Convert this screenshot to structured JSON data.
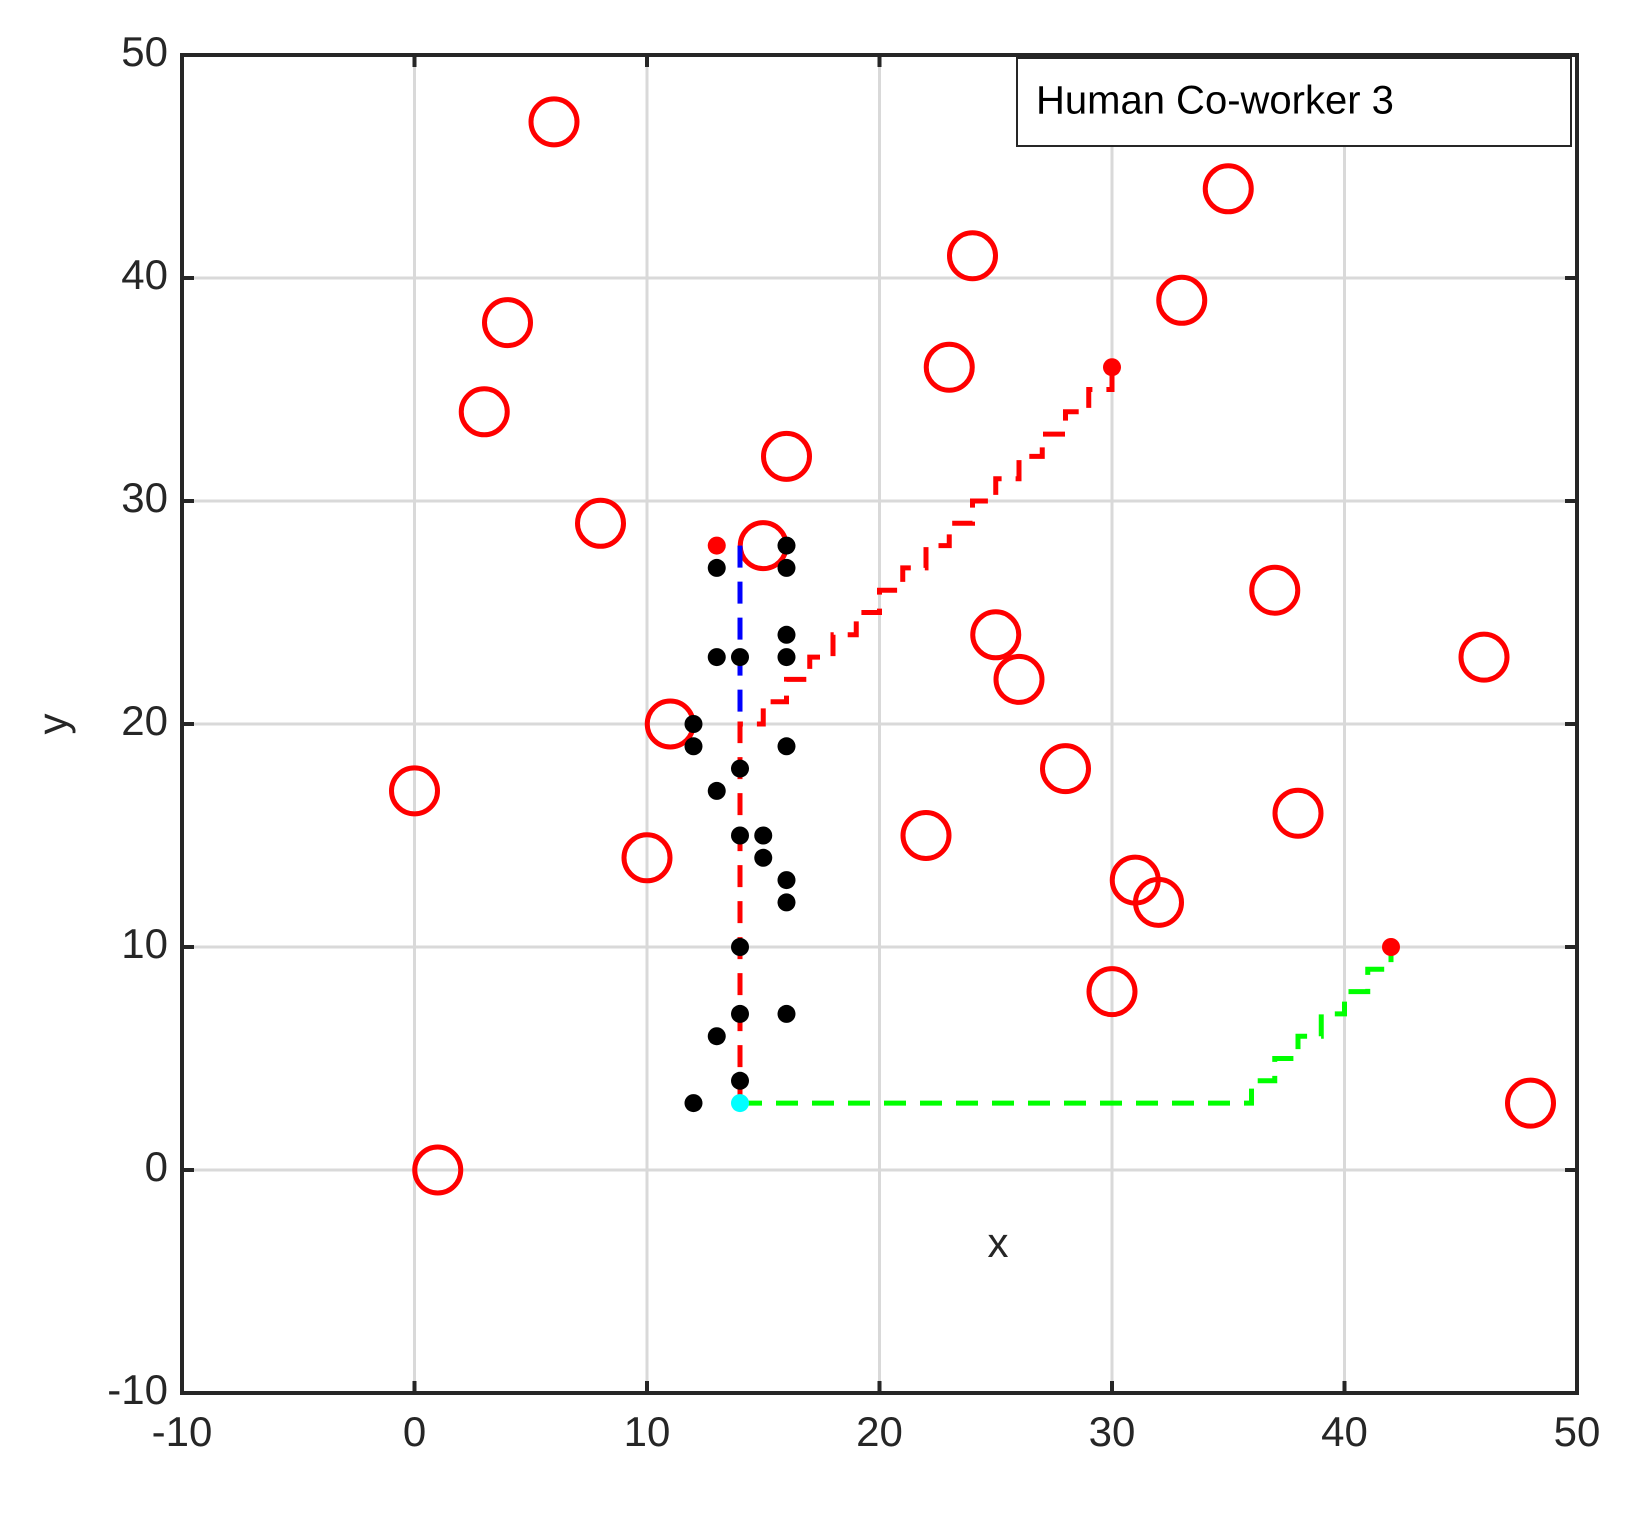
{
  "chart_data": {
    "type": "scatter",
    "annotation": "Human Co-worker 3",
    "xlabel": "x",
    "ylabel": "y",
    "xlim": [
      -10,
      50
    ],
    "ylim": [
      -10,
      50
    ],
    "xticks": [
      -10,
      0,
      10,
      20,
      30,
      40,
      50
    ],
    "yticks": [
      -10,
      0,
      10,
      20,
      30,
      40,
      50
    ],
    "grid": true,
    "series": [
      {
        "style": "circle",
        "color": "#ff0000",
        "x": [
          6,
          35,
          24,
          4,
          33,
          23,
          3,
          16,
          8,
          15,
          37,
          25,
          46,
          26,
          11,
          0,
          28,
          22,
          38,
          10,
          31,
          32,
          30,
          48,
          1
        ],
        "y": [
          47,
          44,
          41,
          38,
          39,
          36,
          34,
          32,
          29,
          28,
          26,
          24,
          23,
          22,
          20,
          17,
          18,
          15,
          16,
          14,
          13,
          12,
          8,
          3,
          0
        ]
      },
      {
        "style": "dashed-line",
        "color": "#0000ff",
        "x": [
          14,
          14
        ],
        "y": [
          28,
          20
        ]
      },
      {
        "style": "dashed-line",
        "color": "#ff0000",
        "x": [
          14,
          14,
          15,
          15,
          16,
          16,
          17,
          17,
          18,
          18,
          19,
          19,
          20,
          20,
          21,
          21,
          22,
          22,
          23,
          23,
          24,
          24,
          25,
          25,
          26,
          26,
          27,
          27,
          28,
          28,
          29,
          29,
          30,
          30
        ],
        "y": [
          3,
          20,
          20,
          21,
          21,
          22,
          22,
          23,
          23,
          24,
          24,
          25,
          25,
          26,
          26,
          27,
          27,
          28,
          28,
          29,
          29,
          30,
          30,
          31,
          31,
          32,
          32,
          33,
          33,
          34,
          34,
          35,
          35,
          36
        ]
      },
      {
        "style": "dashed-line",
        "color": "#00ff00",
        "x": [
          14,
          36,
          36,
          37,
          37,
          38,
          38,
          39,
          39,
          40,
          40,
          41,
          41,
          42,
          42
        ],
        "y": [
          3,
          3,
          4,
          4,
          5,
          5,
          6,
          6,
          7,
          7,
          8,
          8,
          9,
          9,
          10
        ]
      },
      {
        "style": "dot",
        "color": "#000000",
        "x": [
          16,
          13,
          16,
          16,
          13,
          14,
          16,
          12,
          12,
          16,
          14,
          13,
          14,
          15,
          15,
          16,
          16,
          14,
          14,
          16,
          13,
          14,
          12
        ],
        "y": [
          28,
          27,
          27,
          24,
          23,
          23,
          23,
          20,
          19,
          19,
          18,
          17,
          15,
          15,
          14,
          13,
          12,
          10,
          7,
          7,
          6,
          4,
          3
        ]
      },
      {
        "style": "dot",
        "color": "#ff0000",
        "x": [
          13,
          30,
          42
        ],
        "y": [
          28,
          36,
          10
        ]
      },
      {
        "style": "dot",
        "color": "#00ffff",
        "x": [
          14
        ],
        "y": [
          3
        ]
      }
    ]
  }
}
